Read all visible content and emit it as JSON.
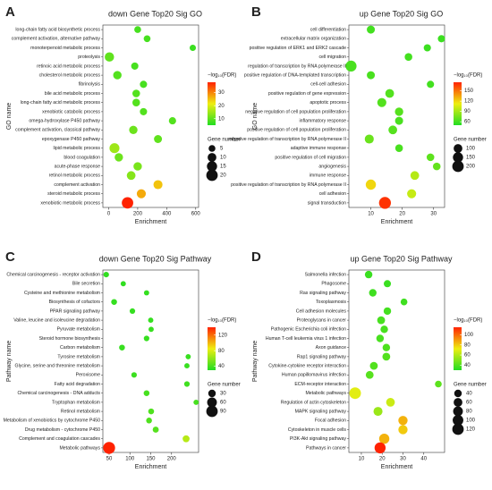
{
  "chart_data": [
    {
      "type": "bubble",
      "panel": "A",
      "title": "down Gene Top20 Sig GO",
      "x_label": "Enrichment",
      "y_label": "GO name",
      "categories": [
        "long-chain fatty acid biosynthetic process",
        "complement activation, alternative pathway",
        "monoterpenoid metabolic process",
        "proteolysis",
        "retinoic acid metabolic process",
        "cholesterol metabolic process",
        "fibrinolysis",
        "bile acid metabolic process",
        "long-chain fatty acid metabolic process",
        "xenobiotic catabolic process",
        "omega-hydroxylase P450 pathway",
        "complement activation, classical pathway",
        "epoxygenase P450 pathway",
        "lipid metabolic process",
        "blood coagulation",
        "acute-phase response",
        "retinol metabolic process",
        "complement activation",
        "steroid metabolic process",
        "xenobiotic metabolic process"
      ],
      "values": [
        200,
        265,
        580,
        5,
        180,
        60,
        240,
        190,
        190,
        240,
        440,
        170,
        340,
        40,
        70,
        200,
        155,
        340,
        225,
        130
      ],
      "sizes": [
        5,
        5,
        4,
        12,
        6,
        9,
        6,
        7,
        7,
        6,
        6,
        9,
        8,
        14,
        9,
        9,
        10,
        11,
        11,
        20
      ],
      "fdr": [
        8,
        8,
        7,
        10,
        8,
        9,
        8,
        9,
        9,
        9,
        9,
        11,
        10,
        15,
        11,
        12,
        13,
        25,
        27,
        38
      ],
      "xlim": [
        -40,
        620
      ],
      "xticks": [
        0,
        200,
        400,
        600
      ],
      "color_label": "−log₁₀(FDR)",
      "clim": [
        5,
        38
      ],
      "cticks": [
        10,
        20,
        30
      ],
      "size_label": "Gene number",
      "size_ticks": [
        5,
        10,
        15,
        20
      ],
      "colormap": [
        "#22dd22",
        "#eeee11",
        "#ff2200"
      ]
    },
    {
      "type": "bubble",
      "panel": "B",
      "title": "up Gene Top20 Sig GO",
      "x_label": "Enrichment",
      "y_label": "GO name",
      "categories": [
        "cell differentiation",
        "extracellular matrix organization",
        "positive regulation of ERK1 and ERK2 cascade",
        "cell migration",
        "regulation of transcription by RNA polymerase II",
        "positive regulation of DNA-templated transcription",
        "cell-cell adhesion",
        "positive regulation of gene expression",
        "apoptotic process",
        "negative regulation of cell population proliferation",
        "inflammatory response",
        "positive regulation of cell population proliferation",
        "negative regulation of transcription by RNA polymerase II",
        "adaptive immune response",
        "positive regulation of cell migration",
        "angiogenesis",
        "immune response",
        "positive regulation of transcription by RNA polymerase II",
        "cell adhesion",
        "signal transduction"
      ],
      "values": [
        10,
        32.5,
        28,
        22,
        3.7,
        10,
        29,
        16,
        13.5,
        19,
        19,
        17,
        9.5,
        19,
        29,
        31,
        24,
        10,
        23,
        14.5
      ],
      "sizes": [
        80,
        60,
        60,
        70,
        180,
        80,
        60,
        100,
        110,
        90,
        80,
        100,
        110,
        70,
        70,
        70,
        100,
        150,
        110,
        220
      ],
      "fdr": [
        60,
        58,
        58,
        60,
        62,
        62,
        60,
        65,
        65,
        66,
        62,
        66,
        72,
        62,
        68,
        70,
        95,
        120,
        100,
        170
      ],
      "xlim": [
        3,
        33.5
      ],
      "xticks": [
        10,
        20,
        30
      ],
      "color_label": "−log₁₀(FDR)",
      "clim": [
        50,
        175
      ],
      "cticks": [
        60,
        90,
        120,
        150
      ],
      "size_label": "Gene number",
      "size_ticks": [
        100,
        150,
        200
      ],
      "colormap": [
        "#22dd22",
        "#eeee11",
        "#ff2200"
      ]
    },
    {
      "type": "bubble",
      "panel": "C",
      "title": "down Gene Top20 Sig Pathway",
      "x_label": "Enrichment",
      "y_label": "Pathway name",
      "categories": [
        "Chemical carcinogenesis - receptor activation",
        "Bile secretion",
        "Cysteine and methionine metabolism",
        "Biosynthesis of cofactors",
        "PPAR signaling pathway",
        "Valine, leucine and isoleucine degradation",
        "Pyruvate metabolism",
        "Steroid hormone biosynthesis",
        "Carbon metabolism",
        "Tyrosine metabolism",
        "Glycine, serine and threonine metabolism",
        "Peroxisome",
        "Fatty acid degradation",
        "Chemical carcinogenesis - DNA adducts",
        "Tryptophan metabolism",
        "Retinol metabolism",
        "Metabolism of xenobiotics by cytochrome P450",
        "Drug metabolism - cytochrome P450",
        "Complement and coagulation cascades",
        "Metabolic pathways"
      ],
      "values": [
        43,
        84,
        140,
        62,
        106,
        150,
        151,
        140,
        81,
        240,
        237,
        110,
        237,
        140,
        259,
        151,
        146,
        162,
        235,
        50
      ],
      "sizes": [
        12,
        10,
        10,
        14,
        12,
        10,
        10,
        12,
        14,
        10,
        10,
        12,
        12,
        14,
        10,
        14,
        14,
        16,
        24,
        100
      ],
      "fdr": [
        34,
        34,
        35,
        35,
        35,
        35,
        36,
        36,
        36,
        36,
        36,
        37,
        38,
        40,
        40,
        42,
        42,
        44,
        70,
        140
      ],
      "xlim": [
        35,
        265
      ],
      "xticks": [
        50,
        100,
        150,
        200
      ],
      "color_label": "−log₁₀(FDR)",
      "clim": [
        30,
        140
      ],
      "cticks": [
        40,
        80,
        120
      ],
      "size_label": "Gene number",
      "size_ticks": [
        30,
        60,
        90
      ],
      "colormap": [
        "#22dd22",
        "#eeee11",
        "#ff2200"
      ]
    },
    {
      "type": "bubble",
      "panel": "D",
      "title": "up Gene Top20 Sig Pathway",
      "x_label": "Enrichment",
      "y_label": "Pathway name",
      "categories": [
        "Salmonella infection",
        "Phagosome",
        "Ras signaling pathway",
        "Toxoplasmosis",
        "Cell adhesion molecules",
        "Proteoglycans in cancer",
        "Pathogenic Escherichia coli infection",
        "Human T-cell leukemia virus 1 infection",
        "Axon guidance",
        "Rap1 signaling pathway",
        "Cytokine-cytokine receptor interaction",
        "Human papillomavirus infection",
        "ECM-receptor interaction",
        "Metabolic pathways",
        "Regulation of actin cytoskeleton",
        "MAPK signaling pathway",
        "Focal adhesion",
        "Cytoskeleton in muscle cells",
        "PI3K-Akt signaling pathway",
        "Pathways in cancer"
      ],
      "values": [
        13.5,
        22.5,
        15.5,
        30.5,
        22.5,
        19.5,
        21,
        19,
        22,
        22,
        16,
        14,
        47,
        7,
        24,
        18,
        30,
        30,
        21,
        19
      ],
      "sizes": [
        40,
        35,
        40,
        30,
        40,
        45,
        40,
        40,
        40,
        45,
        45,
        45,
        30,
        125,
        60,
        65,
        70,
        70,
        90,
        110
      ],
      "fdr": [
        35,
        35,
        36,
        36,
        37,
        38,
        38,
        38,
        39,
        40,
        40,
        41,
        42,
        70,
        65,
        55,
        85,
        80,
        85,
        115
      ],
      "xlim": [
        4,
        50
      ],
      "xticks": [
        10,
        20,
        30,
        40
      ],
      "color_label": "−log₁₀(FDR)",
      "clim": [
        30,
        115
      ],
      "cticks": [
        40,
        60,
        80,
        100
      ],
      "size_label": "Gene number",
      "size_ticks": [
        40,
        60,
        80,
        100,
        120
      ],
      "colormap": [
        "#22dd22",
        "#eeee11",
        "#ff2200"
      ]
    }
  ]
}
